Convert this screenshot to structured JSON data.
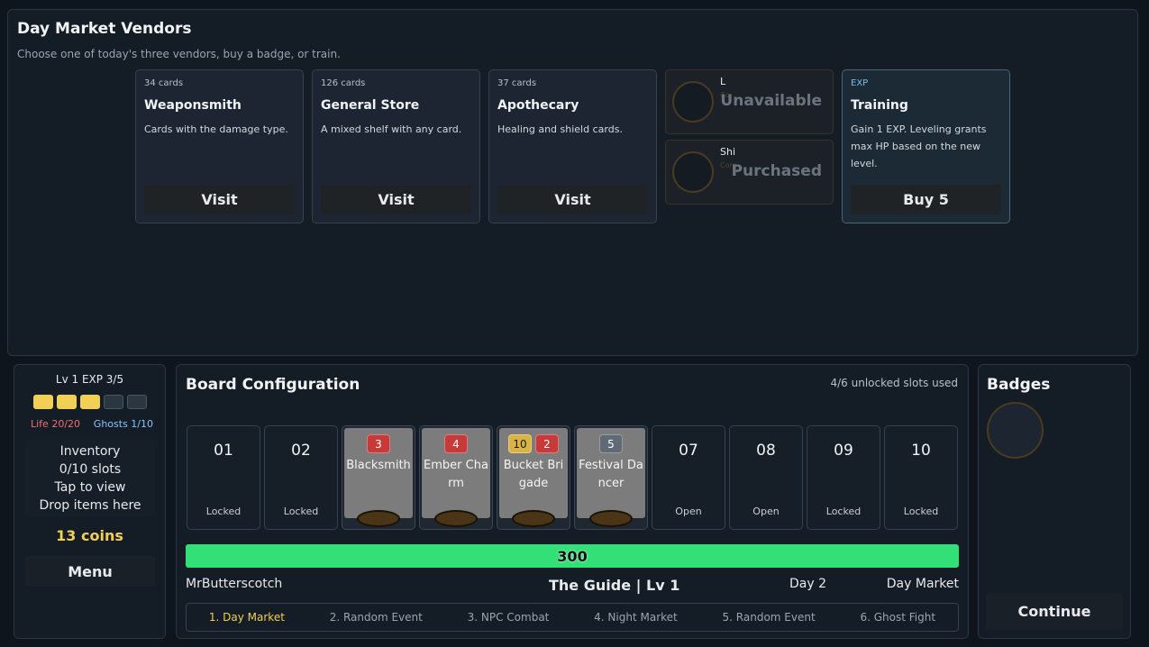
{
  "vendors": {
    "title": "Day Market Vendors",
    "subtitle": "Choose one of today's three vendors, buy a badge, or train.",
    "shops": [
      {
        "count": "34 cards",
        "name": "Weaponsmith",
        "desc": "Cards with the damage type.",
        "button": "Visit"
      },
      {
        "count": "126 cards",
        "name": "General Store",
        "desc": "A mixed shelf with any card.",
        "button": "Visit"
      },
      {
        "count": "37 cards",
        "name": "Apothecary",
        "desc": "Healing and shield cards.",
        "button": "Visit"
      }
    ],
    "badge_offers": [
      {
        "name": "L",
        "sub": "Co",
        "status": "Unavailable"
      },
      {
        "name": "Shi",
        "sub": "Com",
        "status": "Purchased"
      }
    ],
    "training": {
      "tag": "EXP",
      "name": "Training",
      "desc": "Gain 1 EXP. Leveling grants max HP based on the new level.",
      "button": "Buy 5"
    }
  },
  "player": {
    "level_text": "Lv 1  EXP 3/5",
    "exp_filled": 3,
    "exp_total": 5,
    "life": "Life 20/20",
    "ghosts": "Ghosts 1/10",
    "inventory_lines": [
      "Inventory",
      "0/10 slots",
      "Tap to view",
      "Drop items here"
    ],
    "coins": "13 coins",
    "menu": "Menu"
  },
  "board": {
    "title": "Board Configuration",
    "slots_used": "4/6 unlocked slots used",
    "slots": [
      {
        "num": "01",
        "state": "Locked"
      },
      {
        "num": "02",
        "state": "Locked"
      },
      {
        "card": "Blacksmith",
        "tags": [
          {
            "v": "3",
            "c": "red"
          }
        ]
      },
      {
        "card": "Ember Charm",
        "tags": [
          {
            "v": "4",
            "c": "red"
          }
        ]
      },
      {
        "card": "Bucket Brigade",
        "tags": [
          {
            "v": "10",
            "c": "yellow"
          },
          {
            "v": "2",
            "c": "red"
          }
        ]
      },
      {
        "card": "Festival Dancer",
        "tags": [
          {
            "v": "5",
            "c": "gray"
          }
        ]
      },
      {
        "num": "07",
        "state": "Open"
      },
      {
        "num": "08",
        "state": "Open"
      },
      {
        "num": "09",
        "state": "Locked"
      },
      {
        "num": "10",
        "state": "Locked"
      }
    ],
    "hp": "300",
    "player_name": "MrButterscotch",
    "opponent": "The Guide | Lv 1",
    "day": "Day 2",
    "phase": "Day Market",
    "stages": [
      "1. Day Market",
      "2. Random Event",
      "3. NPC Combat",
      "4. Night Market",
      "5. Random Event",
      "6. Ghost Fight"
    ],
    "active_stage": 0
  },
  "badges": {
    "title": "Badges",
    "continue": "Continue"
  }
}
